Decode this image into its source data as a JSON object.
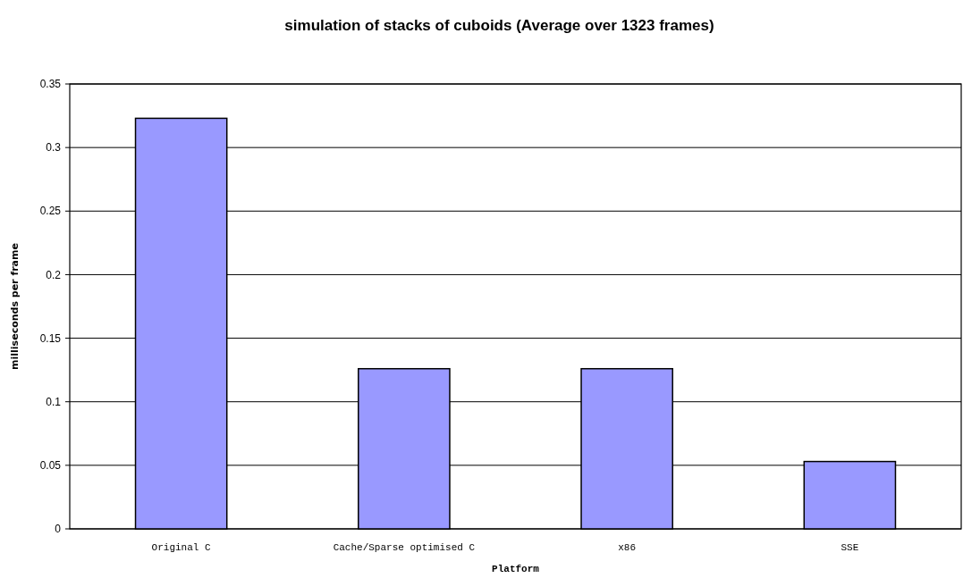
{
  "chart_data": {
    "type": "bar",
    "title": "simulation of stacks of cuboids (Average over 1323 frames)",
    "xlabel": "Platform",
    "ylabel": "milliseconds per frame",
    "categories": [
      "Original C",
      "Cache/Sparse optimised C",
      "x86",
      "SSE"
    ],
    "values": [
      0.323,
      0.126,
      0.126,
      0.053
    ],
    "color": "#9999ff",
    "ylim": [
      0,
      0.35
    ],
    "yticks": [
      0,
      0.05,
      0.1,
      0.15,
      0.2,
      0.25,
      0.3,
      0.35
    ],
    "grid": "y"
  }
}
